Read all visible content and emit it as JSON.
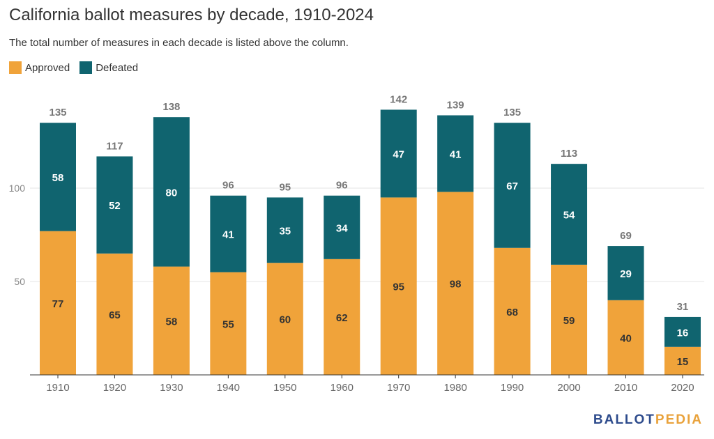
{
  "title": "California ballot measures by decade, 1910-2024",
  "subtitle": "The total number of measures in each decade is listed above the column.",
  "logo": {
    "part1": "BALLOT",
    "part2": "PEDIA"
  },
  "colors": {
    "approved": "#f0a33a",
    "defeated": "#10646f",
    "total_label": "#777777",
    "axis_label": "#666666",
    "grid": "#e4e4e4"
  },
  "chart_data": {
    "type": "bar",
    "stacked": true,
    "title": "California ballot measures by decade, 1910-2024",
    "subtitle": "The total number of measures in each decade is listed above the column.",
    "categories": [
      "1910",
      "1920",
      "1930",
      "1940",
      "1950",
      "1960",
      "1970",
      "1980",
      "1990",
      "2000",
      "2010",
      "2020"
    ],
    "series": [
      {
        "name": "Approved",
        "values": [
          77,
          65,
          58,
          55,
          60,
          62,
          95,
          98,
          68,
          59,
          40,
          15
        ]
      },
      {
        "name": "Defeated",
        "values": [
          58,
          52,
          80,
          41,
          35,
          34,
          47,
          41,
          67,
          54,
          29,
          16
        ]
      }
    ],
    "totals": [
      135,
      117,
      138,
      96,
      95,
      96,
      142,
      139,
      135,
      113,
      69,
      31
    ],
    "yticks": [
      "50",
      "100"
    ],
    "ylim": [
      0,
      150
    ],
    "grid": true,
    "legend": "top-left"
  }
}
